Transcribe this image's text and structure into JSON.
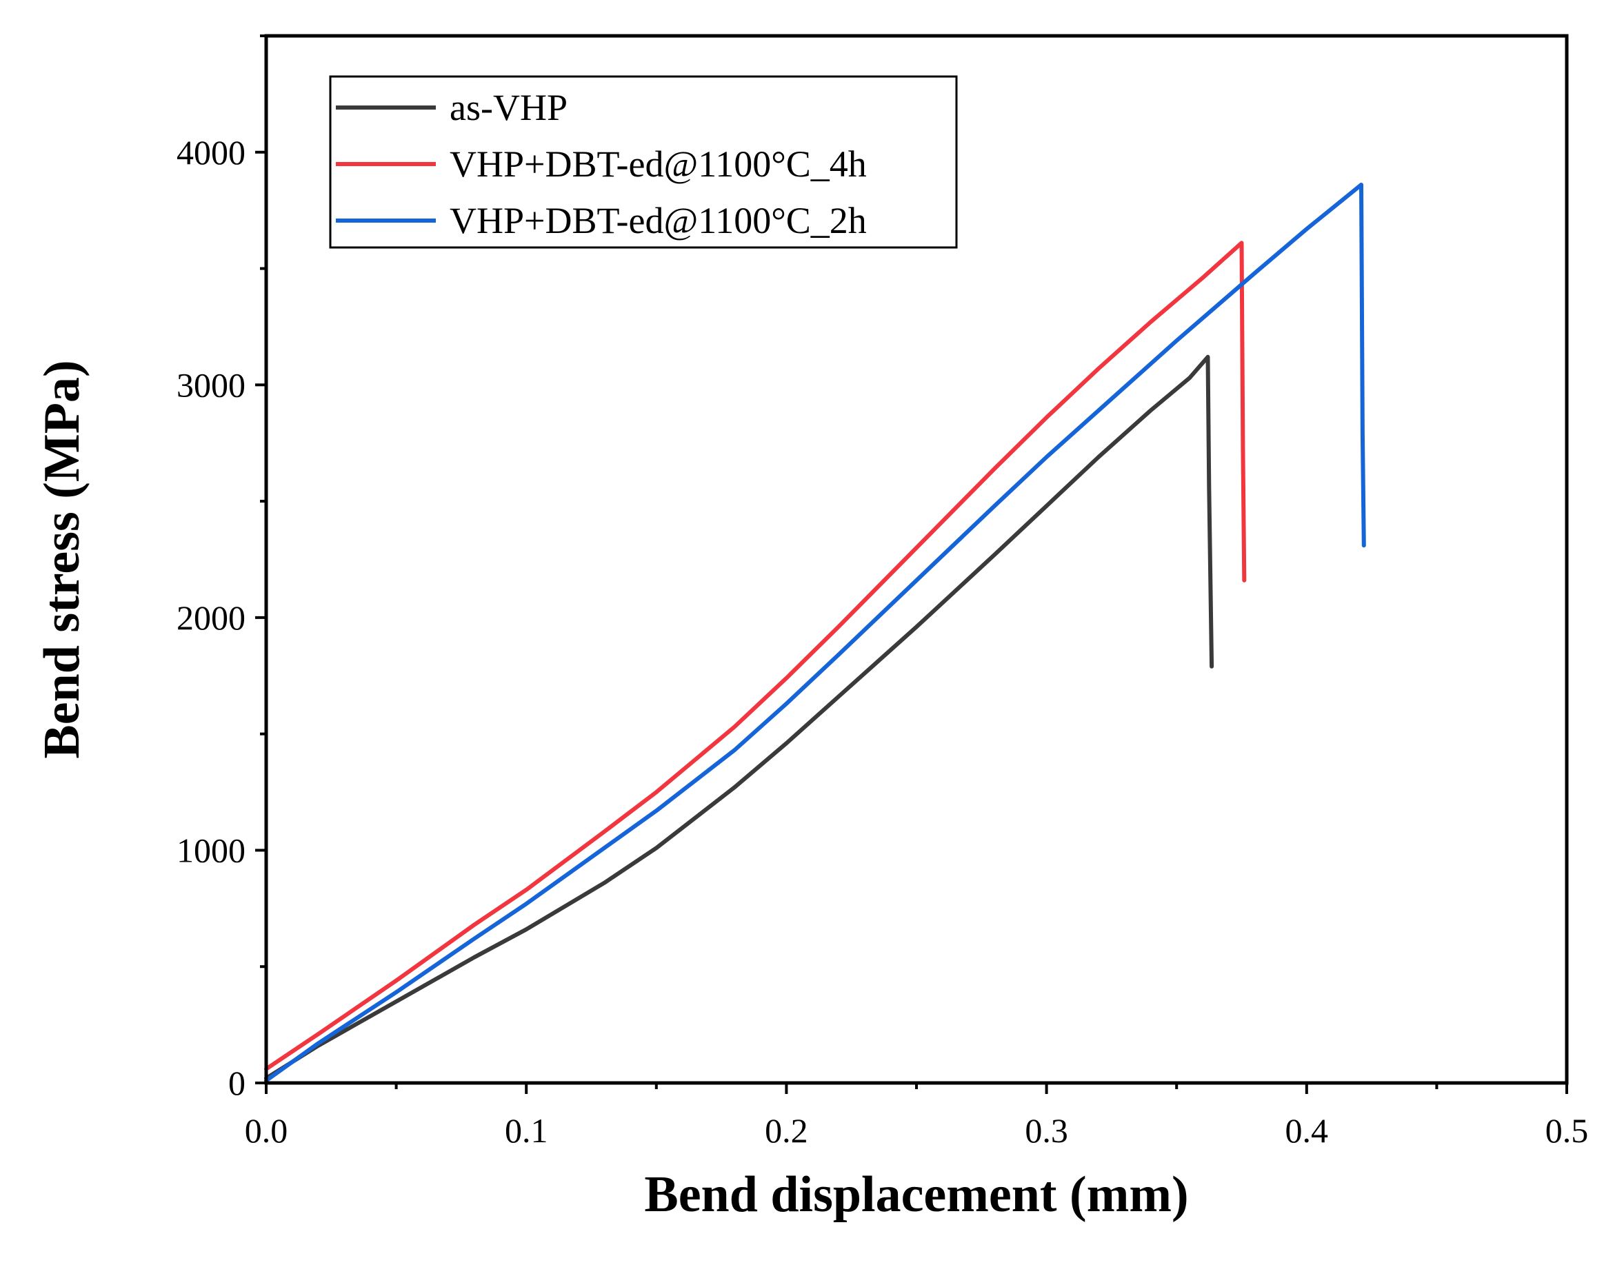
{
  "chart_data": {
    "type": "line",
    "title": "",
    "xlabel": "Bend displacement (mm)",
    "ylabel": "Bend stress (MPa)",
    "xlim": [
      0,
      0.5
    ],
    "ylim": [
      0,
      4500
    ],
    "x_ticks": [
      0.0,
      0.1,
      0.2,
      0.3,
      0.4,
      0.5
    ],
    "x_tick_labels": [
      "0.0",
      "0.1",
      "0.2",
      "0.3",
      "0.4",
      "0.5"
    ],
    "y_ticks": [
      0,
      1000,
      2000,
      3000,
      4000
    ],
    "y_tick_labels": [
      "0",
      "1000",
      "2000",
      "3000",
      "4000"
    ],
    "grid": false,
    "legend_position": "top-left",
    "series": [
      {
        "name": "as-VHP",
        "color": "#3a3a3a",
        "x": [
          0.0,
          0.02,
          0.05,
          0.08,
          0.1,
          0.13,
          0.15,
          0.18,
          0.2,
          0.22,
          0.25,
          0.28,
          0.3,
          0.32,
          0.34,
          0.355,
          0.362,
          0.3625,
          0.3635
        ],
        "y": [
          20,
          160,
          350,
          540,
          660,
          860,
          1010,
          1270,
          1460,
          1660,
          1960,
          2270,
          2480,
          2690,
          2890,
          3030,
          3120,
          2560,
          1790
        ]
      },
      {
        "name": "VHP+DBT-ed@1100°C_4h",
        "color": "#f2363f",
        "x": [
          0.0,
          0.02,
          0.05,
          0.08,
          0.1,
          0.13,
          0.15,
          0.18,
          0.2,
          0.22,
          0.25,
          0.28,
          0.3,
          0.32,
          0.34,
          0.36,
          0.375,
          0.3755,
          0.376
        ],
        "y": [
          60,
          210,
          440,
          680,
          830,
          1080,
          1250,
          1530,
          1740,
          1960,
          2300,
          2640,
          2860,
          3070,
          3270,
          3460,
          3610,
          2730,
          2160
        ]
      },
      {
        "name": "VHP+DBT-ed@1100°C_2h",
        "color": "#1565d8",
        "x": [
          0.0,
          0.02,
          0.05,
          0.08,
          0.1,
          0.13,
          0.15,
          0.18,
          0.2,
          0.22,
          0.25,
          0.28,
          0.3,
          0.32,
          0.35,
          0.38,
          0.4,
          0.421,
          0.4215,
          0.422
        ],
        "y": [
          10,
          170,
          390,
          620,
          770,
          1010,
          1170,
          1430,
          1630,
          1840,
          2160,
          2480,
          2690,
          2890,
          3190,
          3480,
          3670,
          3860,
          2790,
          2310
        ]
      }
    ]
  }
}
